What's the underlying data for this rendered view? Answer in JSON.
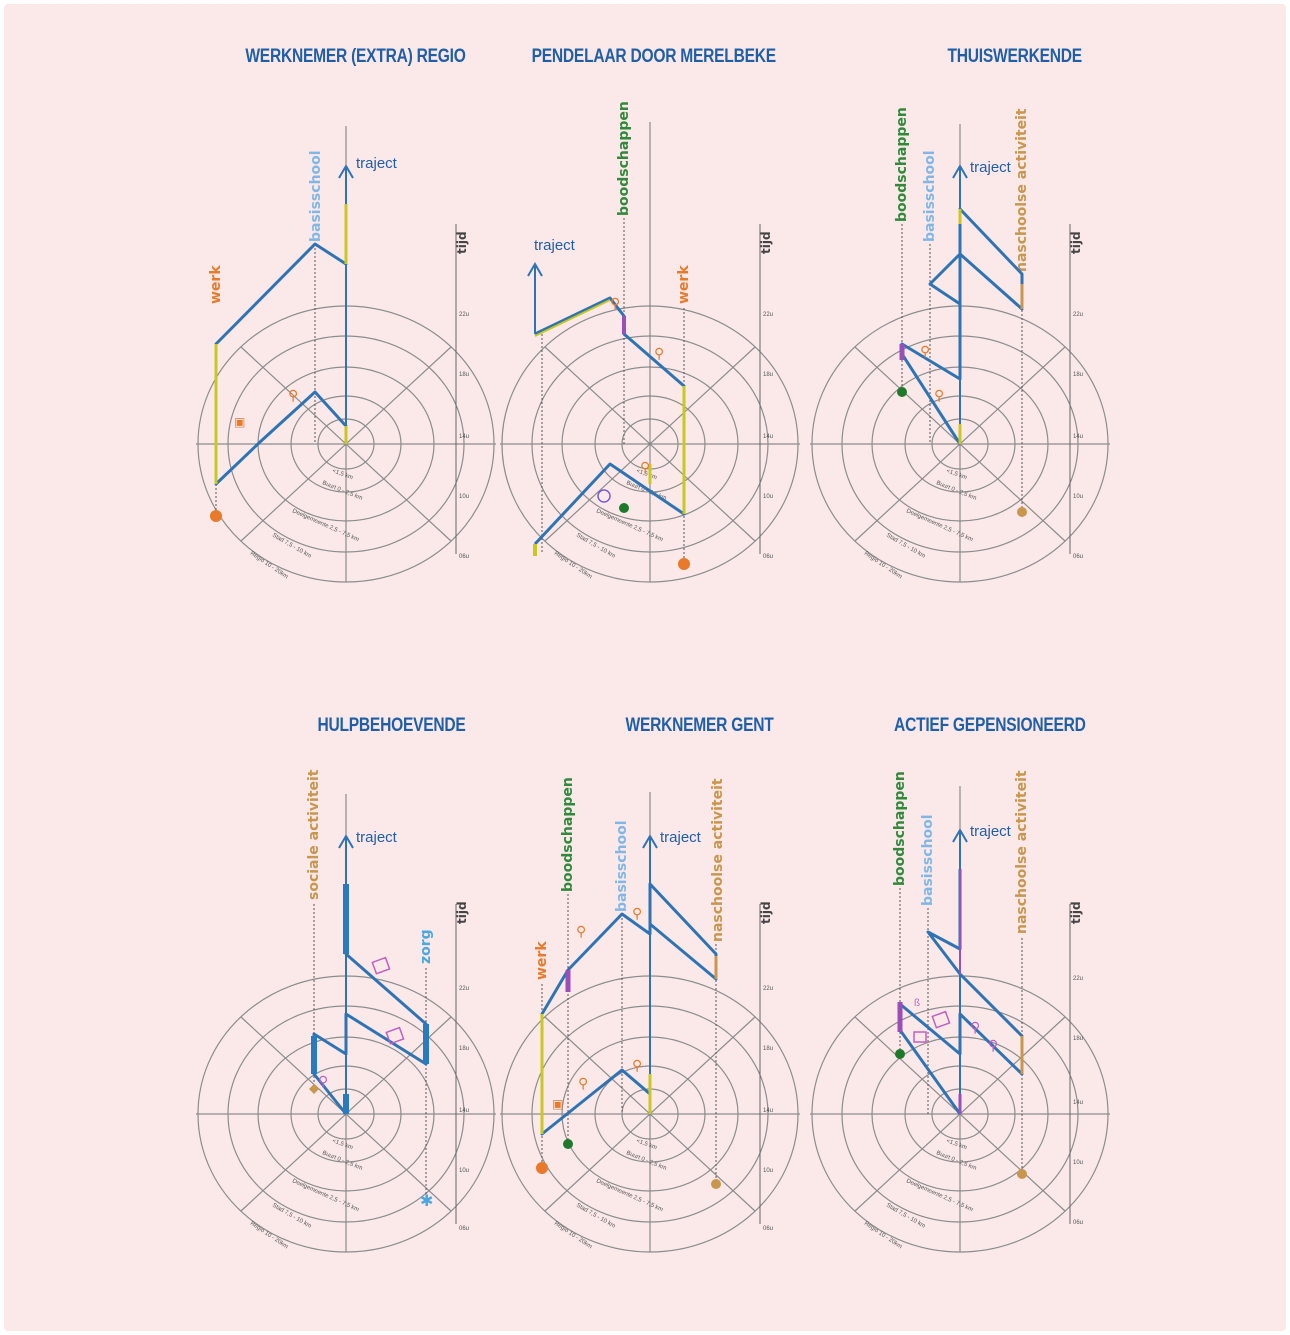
{
  "colors": {
    "background": "#fbe9ea",
    "title": "#1f5fa8",
    "grid": "#8c8c8c",
    "path": "#2e74b5",
    "highlight": "#c8c820",
    "werk": "#e87a2a",
    "boodschappen": "#2f8a3a",
    "basisschool": "#7fb8e8",
    "naschoolse": "#c8964c",
    "purple": "#9a4fb8",
    "social": "#c8964c",
    "zorg": "#4aa8e0"
  },
  "common": {
    "traject": "traject",
    "tijd": "tijd",
    "time_ticks": [
      "22u",
      "18u",
      "14u",
      "10u",
      "06u"
    ],
    "ring_labels": [
      "<1,5 km",
      "Buurt 0 - 2,5 km",
      "Deelgemeente 2,5 - 7,5 km",
      "Stad 7,5 - 10 km",
      "Regio 10 - 20km"
    ]
  },
  "panels": [
    {
      "title": "WERKNEMER (EXTRA) REGIO",
      "labels": [
        {
          "text": "werk",
          "color": "werk"
        },
        {
          "text": "basisschool",
          "color": "basisschool"
        }
      ]
    },
    {
      "title": "PENDELAAR DOOR MERELBEKE",
      "labels": [
        {
          "text": "boodschappen",
          "color": "boodschappen"
        },
        {
          "text": "werk",
          "color": "werk"
        }
      ]
    },
    {
      "title": "THUISWERKENDE",
      "labels": [
        {
          "text": "boodschappen",
          "color": "boodschappen"
        },
        {
          "text": "basisschool",
          "color": "basisschool"
        },
        {
          "text": "naschoolse activiteit",
          "color": "naschoolse"
        }
      ]
    },
    {
      "title": "HULPBEHOEVENDE",
      "labels": [
        {
          "text": "sociale activiteit",
          "color": "social"
        },
        {
          "text": "zorg",
          "color": "zorg"
        }
      ]
    },
    {
      "title": "WERKNEMER GENT",
      "labels": [
        {
          "text": "werk",
          "color": "werk"
        },
        {
          "text": "boodschappen",
          "color": "boodschappen"
        },
        {
          "text": "basisschool",
          "color": "basisschool"
        },
        {
          "text": "naschoolse activiteit",
          "color": "naschoolse"
        }
      ]
    },
    {
      "title": "ACTIEF GEPENSIONEERD",
      "labels": [
        {
          "text": "boodschappen",
          "color": "boodschappen"
        },
        {
          "text": "basisschool",
          "color": "basisschool"
        },
        {
          "text": "naschoolse activiteit",
          "color": "naschoolse"
        }
      ]
    }
  ]
}
